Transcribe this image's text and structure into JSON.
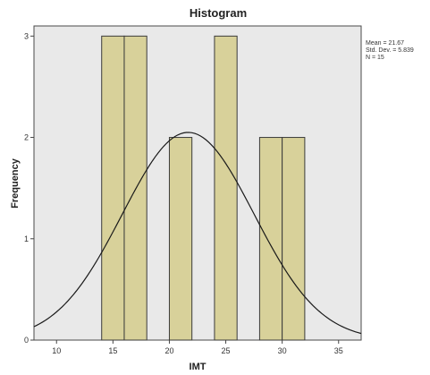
{
  "chart_data": {
    "type": "bar",
    "title": "Histogram",
    "xlabel": "IMT",
    "ylabel": "Frequency",
    "bin_width": 2,
    "bins": [
      {
        "start": 14,
        "end": 16,
        "count": 3
      },
      {
        "start": 16,
        "end": 18,
        "count": 3
      },
      {
        "start": 20,
        "end": 22,
        "count": 2
      },
      {
        "start": 24,
        "end": 26,
        "count": 3
      },
      {
        "start": 28,
        "end": 30,
        "count": 2
      },
      {
        "start": 30,
        "end": 32,
        "count": 2
      }
    ],
    "xlim": [
      8,
      37
    ],
    "ylim": [
      0,
      3.1
    ],
    "x_ticks": [
      10,
      15,
      20,
      25,
      30,
      35
    ],
    "y_ticks": [
      0,
      1,
      2,
      3
    ],
    "x_tick_labels": [
      "10",
      "15",
      "20",
      "25",
      "30",
      "35"
    ],
    "y_tick_labels": [
      "0",
      "1",
      "2",
      "3"
    ],
    "normal_curve": {
      "mean": 21.67,
      "std_dev": 5.839,
      "n": 15
    },
    "stats_text": [
      "Mean = 21.67",
      "Std. Dev. = 5.839",
      "N = 15"
    ],
    "grid": false,
    "legend": "top-right",
    "colors": {
      "bar_fill": "#d8d19a",
      "plot_background": "#e9e9e9",
      "curve": "#1a1a1a"
    }
  }
}
